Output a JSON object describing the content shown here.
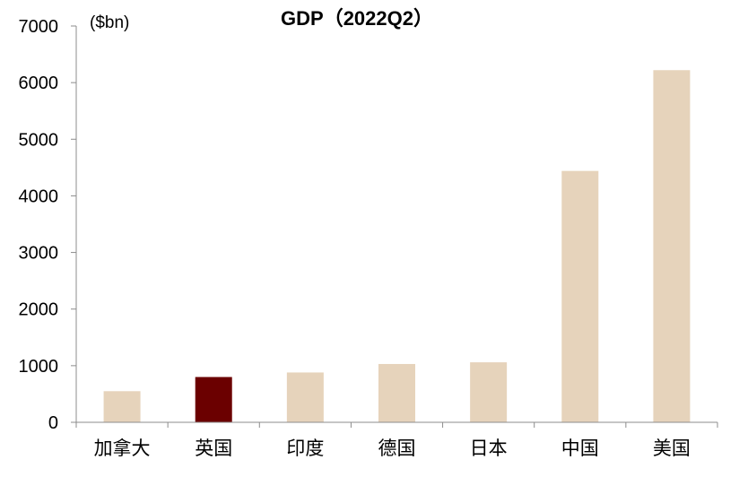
{
  "chart_data": {
    "type": "bar",
    "title": "GDP（2022Q2）",
    "ylabel": "($bn)",
    "xlabel": "",
    "categories": [
      "加拿大",
      "英国",
      "印度",
      "德国",
      "日本",
      "中国",
      "美国"
    ],
    "series": [
      {
        "values": [
          550,
          800,
          880,
          1030,
          1060,
          4440,
          6220
        ]
      }
    ],
    "highlight_index": 1,
    "ylim": [
      0,
      7000
    ],
    "yticks": [
      0,
      1000,
      2000,
      3000,
      4000,
      5000,
      6000,
      7000
    ],
    "grid": false,
    "legend": "none",
    "colors": {
      "bar": "#e6d3bb",
      "highlight": "#6b0000",
      "axis": "#8c8c8c"
    }
  }
}
